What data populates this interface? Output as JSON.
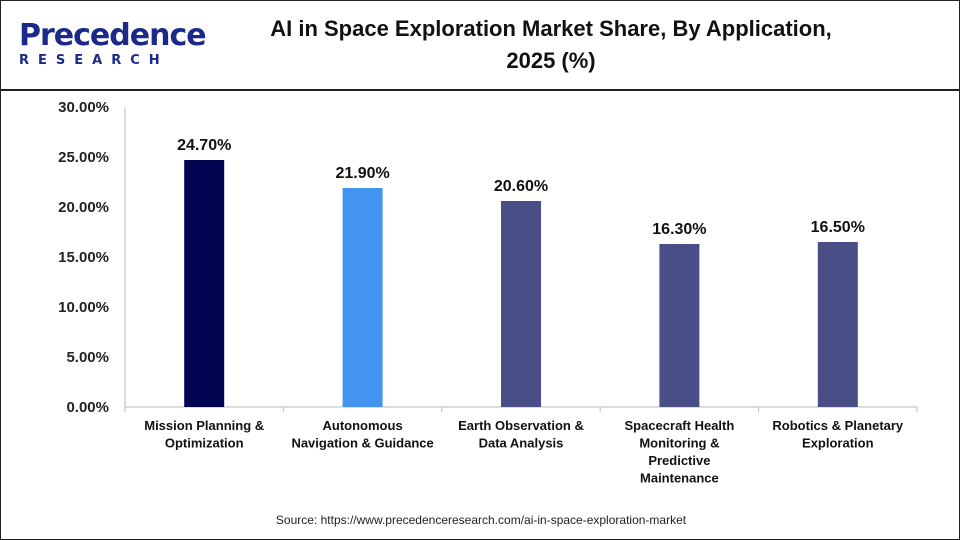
{
  "logo": {
    "line1": "Precedence",
    "line2": "RESEARCH"
  },
  "chart_data": {
    "type": "bar",
    "title": "AI in Space Exploration Market Share, By Application, 2025 (%)",
    "title_lines": [
      "AI in Space Exploration Market Share, By Application,",
      "2025 (%)"
    ],
    "categories": [
      [
        "Mission Planning &",
        "Optimization"
      ],
      [
        "Autonomous",
        "Navigation & Guidance"
      ],
      [
        "Earth Observation &",
        "Data Analysis"
      ],
      [
        "Spacecraft Health",
        "Monitoring &",
        "Predictive",
        "Maintenance"
      ],
      [
        "Robotics & Planetary",
        "Exploration"
      ]
    ],
    "values": [
      24.7,
      21.9,
      20.6,
      16.3,
      16.5
    ],
    "data_labels": [
      "24.70%",
      "21.90%",
      "20.60%",
      "16.30%",
      "16.50%"
    ],
    "colors": [
      "#020552",
      "#4394f0",
      "#4a4e86",
      "#4a4e86",
      "#4a4e86"
    ],
    "yticks": [
      0,
      5,
      10,
      15,
      20,
      25,
      30
    ],
    "ytick_labels": [
      "0.00%",
      "5.00%",
      "10.00%",
      "15.00%",
      "20.00%",
      "25.00%",
      "30.00%"
    ],
    "ylim": [
      0,
      30
    ],
    "xlabel": "",
    "ylabel": "",
    "grid": false
  },
  "source": "Source: https://www.precedenceresearch.com/ai-in-space-exploration-market"
}
